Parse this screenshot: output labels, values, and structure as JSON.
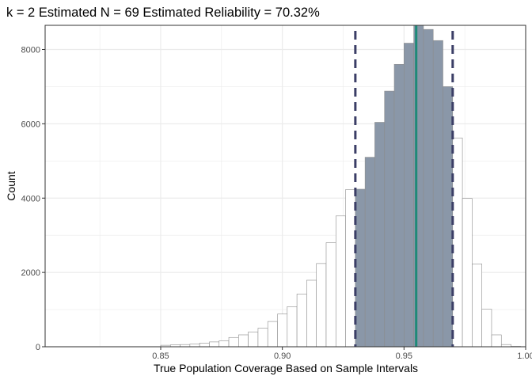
{
  "chart_data": {
    "type": "bar",
    "title": "k = 2  Estimated N = 69  Estimated Reliability = 70.32%",
    "xlabel": "True Population Coverage Based on Sample Intervals",
    "ylabel": "Count",
    "xlim": [
      0.8025,
      1.0
    ],
    "ylim": [
      0,
      8650
    ],
    "x_ticks": [
      0.85,
      0.9,
      0.95,
      1.0
    ],
    "x_tick_labels": [
      "0.85",
      "0.90",
      "0.95",
      "1.00"
    ],
    "y_ticks": [
      0,
      2000,
      4000,
      6000,
      8000
    ],
    "y_tick_labels": [
      "0",
      "2000",
      "4000",
      "6000",
      "8000"
    ],
    "grid": true,
    "bin_width": 0.004,
    "bin_starts": [
      0.85,
      0.854,
      0.858,
      0.862,
      0.866,
      0.87,
      0.874,
      0.878,
      0.882,
      0.886,
      0.89,
      0.894,
      0.898,
      0.902,
      0.906,
      0.91,
      0.914,
      0.918,
      0.922,
      0.926,
      0.93,
      0.934,
      0.938,
      0.942,
      0.946,
      0.95,
      0.954,
      0.958,
      0.962,
      0.966,
      0.97,
      0.974,
      0.978,
      0.982,
      0.986,
      0.99,
      0.994
    ],
    "counts": [
      40,
      50,
      60,
      70,
      100,
      130,
      160,
      250,
      320,
      400,
      500,
      680,
      880,
      1080,
      1420,
      1790,
      2240,
      2800,
      3520,
      4230,
      4240,
      5100,
      6040,
      6880,
      7600,
      8170,
      8650,
      8540,
      8240,
      7000,
      5620,
      3990,
      2230,
      1010,
      320,
      60,
      10
    ],
    "highlight_range": [
      0.93,
      0.97
    ],
    "interval_lines": [
      0.93,
      0.97
    ],
    "estimate_line": 0.955,
    "colors": {
      "highlight_fill": "#8a97a8",
      "plain_fill": "#ffffff",
      "bar_border": "#8c8c8c",
      "dashed_line": "#3b3e66",
      "estimate_line": "#1e8a78",
      "grid": "#ebebeb",
      "panel_border": "#333333"
    }
  }
}
